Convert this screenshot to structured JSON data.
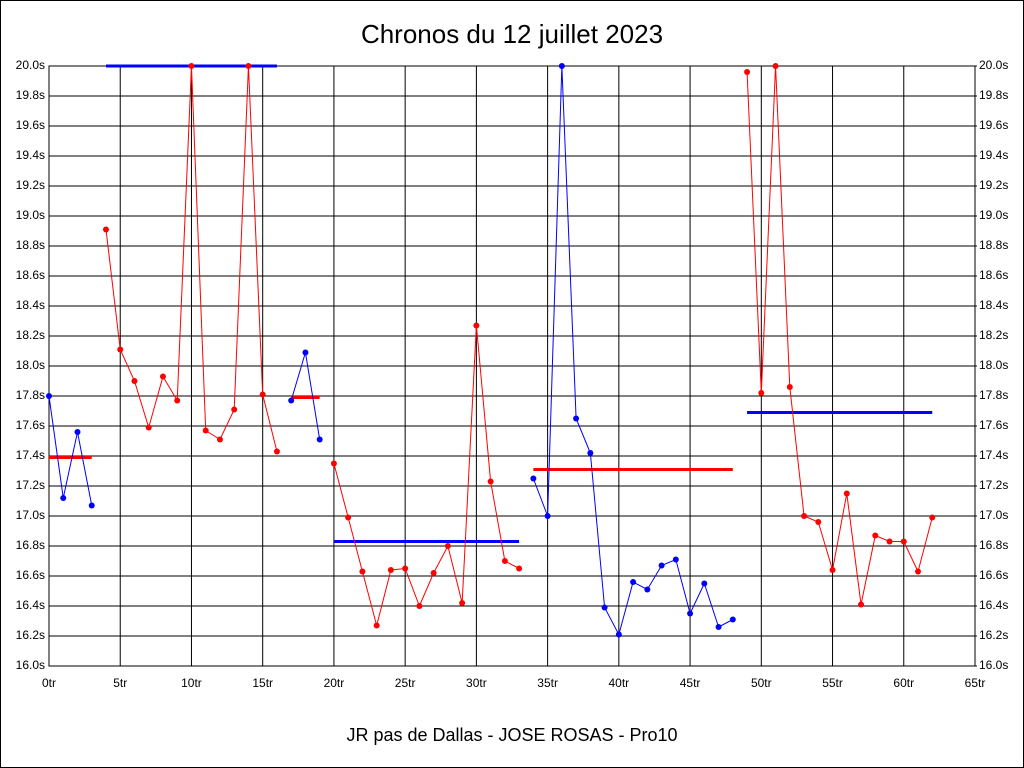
{
  "chart_data": {
    "type": "line",
    "title": "Chronos du 12 juillet 2023",
    "x_label": "JR pas de Dallas - JOSE ROSAS - Pro10",
    "xlim": [
      0,
      65
    ],
    "xticks": [
      {
        "value": 0,
        "label": "0tr"
      },
      {
        "value": 5,
        "label": "5tr"
      },
      {
        "value": 10,
        "label": "10tr"
      },
      {
        "value": 15,
        "label": "15tr"
      },
      {
        "value": 20,
        "label": "20tr"
      },
      {
        "value": 25,
        "label": "25tr"
      },
      {
        "value": 30,
        "label": "30tr"
      },
      {
        "value": 35,
        "label": "35tr"
      },
      {
        "value": 40,
        "label": "40tr"
      },
      {
        "value": 45,
        "label": "45tr"
      },
      {
        "value": 50,
        "label": "50tr"
      },
      {
        "value": 55,
        "label": "55tr"
      },
      {
        "value": 60,
        "label": "60tr"
      },
      {
        "value": 65,
        "label": "65tr"
      }
    ],
    "ylim": [
      16.0,
      20.0
    ],
    "yticks": [
      {
        "value": 16.0,
        "label": "16.0s"
      },
      {
        "value": 16.2,
        "label": "16.2s"
      },
      {
        "value": 16.4,
        "label": "16.4s"
      },
      {
        "value": 16.6,
        "label": "16.6s"
      },
      {
        "value": 16.8,
        "label": "16.8s"
      },
      {
        "value": 17.0,
        "label": "17.0s"
      },
      {
        "value": 17.2,
        "label": "17.2s"
      },
      {
        "value": 17.4,
        "label": "17.4s"
      },
      {
        "value": 17.6,
        "label": "17.6s"
      },
      {
        "value": 17.8,
        "label": "17.8s"
      },
      {
        "value": 18.0,
        "label": "18.0s"
      },
      {
        "value": 18.2,
        "label": "18.2s"
      },
      {
        "value": 18.4,
        "label": "18.4s"
      },
      {
        "value": 18.6,
        "label": "18.6s"
      },
      {
        "value": 18.8,
        "label": "18.8s"
      },
      {
        "value": 19.0,
        "label": "19.0s"
      },
      {
        "value": 19.2,
        "label": "19.2s"
      },
      {
        "value": 19.4,
        "label": "19.4s"
      },
      {
        "value": 19.6,
        "label": "19.6s"
      },
      {
        "value": 19.8,
        "label": "19.8s"
      },
      {
        "value": 20.0,
        "label": "20.0s"
      }
    ],
    "y2lim": [
      16.0,
      20.0
    ],
    "y2ticks": [
      {
        "value": 16.0,
        "label": "16.0s"
      },
      {
        "value": 16.2,
        "label": "16.2s"
      },
      {
        "value": 16.4,
        "label": "16.4s"
      },
      {
        "value": 16.6,
        "label": "16.6s"
      },
      {
        "value": 16.8,
        "label": "16.8s"
      },
      {
        "value": 17.0,
        "label": "17.0s"
      },
      {
        "value": 17.2,
        "label": "17.2s"
      },
      {
        "value": 17.4,
        "label": "17.4s"
      },
      {
        "value": 17.6,
        "label": "17.6s"
      },
      {
        "value": 17.8,
        "label": "17.8s"
      },
      {
        "value": 18.0,
        "label": "18.0s"
      },
      {
        "value": 18.2,
        "label": "18.2s"
      },
      {
        "value": 18.4,
        "label": "18.4s"
      },
      {
        "value": 18.6,
        "label": "18.6s"
      },
      {
        "value": 18.8,
        "label": "18.8s"
      },
      {
        "value": 19.0,
        "label": "19.0s"
      },
      {
        "value": 19.2,
        "label": "19.2s"
      },
      {
        "value": 19.4,
        "label": "19.4s"
      },
      {
        "value": 19.6,
        "label": "19.6s"
      },
      {
        "value": 19.8,
        "label": "19.8s"
      },
      {
        "value": 20.0,
        "label": "20.0s"
      }
    ],
    "grid": true,
    "series": [
      {
        "color": "#0000ff",
        "x": [
          0,
          1,
          2,
          3
        ],
        "values": [
          17.8,
          17.12,
          17.56,
          17.07
        ]
      },
      {
        "color": "#ff0000",
        "x": [
          4,
          5,
          6,
          7,
          8,
          9,
          10,
          11,
          12,
          13,
          14,
          15,
          16
        ],
        "values": [
          18.91,
          18.11,
          17.9,
          17.59,
          17.93,
          17.77,
          20.0,
          17.57,
          17.51,
          17.71,
          20.0,
          17.81,
          17.43
        ]
      },
      {
        "color": "#0000ff",
        "x": [
          17,
          18,
          19
        ],
        "values": [
          17.77,
          18.09,
          17.51
        ]
      },
      {
        "color": "#ff0000",
        "x": [
          20,
          21,
          22,
          23,
          24,
          25,
          26,
          27,
          28,
          29,
          30,
          31,
          32,
          33
        ],
        "values": [
          17.35,
          16.99,
          16.63,
          16.27,
          16.64,
          16.65,
          16.4,
          16.62,
          16.8,
          16.42,
          18.27,
          17.23,
          16.7,
          16.65
        ]
      },
      {
        "color": "#0000ff",
        "x": [
          34,
          35,
          36,
          37,
          38,
          39,
          40,
          41,
          42,
          43,
          44,
          45,
          46,
          47,
          48
        ],
        "values": [
          17.25,
          17.0,
          20.0,
          17.65,
          17.42,
          16.39,
          16.21,
          16.56,
          16.51,
          16.67,
          16.71,
          16.35,
          16.55,
          16.26,
          16.31
        ]
      },
      {
        "color": "#ff0000",
        "x": [
          49,
          50,
          51,
          52,
          53,
          54,
          55,
          56,
          57,
          58,
          59,
          60,
          61,
          62
        ],
        "values": [
          19.96,
          17.82,
          20.0,
          17.86,
          17.0,
          16.96,
          16.64,
          17.15,
          16.41,
          16.87,
          16.83,
          16.83,
          16.63,
          16.99
        ]
      }
    ],
    "reference_lines": [
      {
        "color": "#ff0000",
        "x": [
          0,
          3
        ],
        "value": 17.39
      },
      {
        "color": "#0000ff",
        "x": [
          4,
          16
        ],
        "value": 20.0
      },
      {
        "color": "#ff0000",
        "x": [
          17,
          19
        ],
        "value": 17.79
      },
      {
        "color": "#0000ff",
        "x": [
          20,
          33
        ],
        "value": 16.83
      },
      {
        "color": "#ff0000",
        "x": [
          34,
          48
        ],
        "value": 17.31
      },
      {
        "color": "#0000ff",
        "x": [
          49,
          62
        ],
        "value": 17.69
      }
    ]
  }
}
